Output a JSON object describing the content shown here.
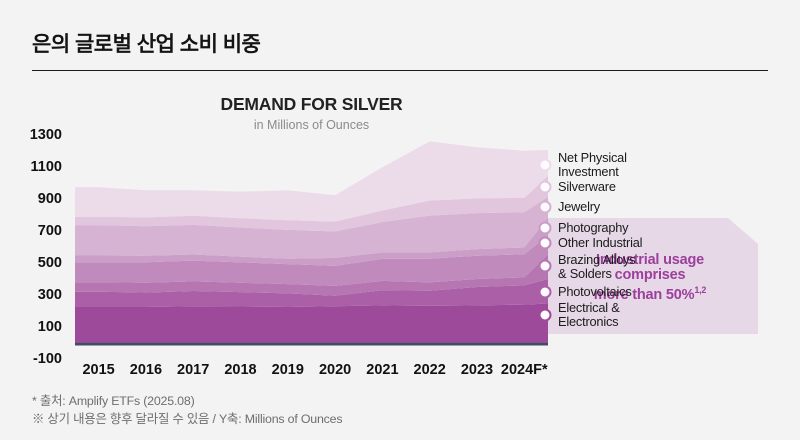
{
  "page": {
    "title": "은의 글로벌 산업 소비 비중"
  },
  "chart": {
    "title": "DEMAND FOR SILVER",
    "subtitle": "in Millions of Ounces"
  },
  "annotation": {
    "line1": "Industrial usage",
    "line2": "comprises",
    "line3": "more than 50%",
    "sup": "1,2"
  },
  "legend": {
    "items": [
      {
        "label": "Net Physical\nInvestment",
        "color": "#ecdbe9"
      },
      {
        "label": "Silverware",
        "color": "#e1c6de"
      },
      {
        "label": "Jewelry",
        "color": "#d6b2d3"
      },
      {
        "label": "Photography",
        "color": "#cb9ec8"
      },
      {
        "label": "Other Industrial",
        "color": "#c08abd"
      },
      {
        "label": "Brazing Alloys\n& Solders",
        "color": "#b576b2"
      },
      {
        "label": "Photovoltaics",
        "color": "#aa5fa7"
      },
      {
        "label": "Electrical &\nElectronics",
        "color": "#9e4a9b"
      }
    ]
  },
  "footnotes": {
    "line1": "* 출처: Amplify ETFs (2025.08)",
    "line2": "※ 상기 내용은 향후 달라질 수 있음 / Y축: Millions of Ounces"
  },
  "colors": {
    "background": "#f4f3f4",
    "baseline": "#3e4e63",
    "banner": "#e6d8e7",
    "annotation_text": "#9c3f9c",
    "circle_fill": "#fdfbfd"
  },
  "chart_data": {
    "type": "area",
    "stacked": true,
    "title": "DEMAND FOR SILVER",
    "units": "Millions of Ounces",
    "grid": false,
    "legend_position": "right",
    "ylim": [
      -100,
      1300
    ],
    "y_ticks": [
      1300,
      1100,
      900,
      700,
      500,
      300,
      100,
      -100
    ],
    "categories": [
      "2015",
      "2016",
      "2017",
      "2018",
      "2019",
      "2020",
      "2021",
      "2022",
      "2023",
      "2024F*"
    ],
    "series": [
      {
        "name": "Electrical & Electronics",
        "color": "#9e4a9b",
        "values": [
          225,
          225,
          230,
          228,
          225,
          230,
          235,
          232,
          235,
          240
        ]
      },
      {
        "name": "Photovoltaics",
        "color": "#aa5fa7",
        "values": [
          95,
          90,
          95,
          90,
          85,
          65,
          95,
          95,
          115,
          120
        ]
      },
      {
        "name": "Brazing Alloys & Solders",
        "color": "#b576b2",
        "values": [
          60,
          62,
          60,
          58,
          58,
          62,
          58,
          52,
          50,
          50
        ]
      },
      {
        "name": "Other Industrial",
        "color": "#c08abd",
        "values": [
          125,
          128,
          130,
          128,
          125,
          125,
          138,
          147,
          145,
          145
        ]
      },
      {
        "name": "Photography",
        "color": "#cb9ec8",
        "values": [
          42,
          40,
          38,
          36,
          34,
          50,
          40,
          40,
          42,
          42
        ]
      },
      {
        "name": "Jewelry",
        "color": "#d6b2d3",
        "values": [
          190,
          185,
          185,
          182,
          180,
          165,
          190,
          230,
          225,
          220
        ]
      },
      {
        "name": "Silverware",
        "color": "#e1c6de",
        "values": [
          52,
          55,
          57,
          58,
          60,
          62,
          72,
          94,
          92,
          90
        ]
      },
      {
        "name": "Net Physical Investment",
        "color": "#ecdbe9",
        "values": [
          185,
          170,
          160,
          165,
          188,
          165,
          270,
          370,
          320,
          295
        ]
      }
    ]
  }
}
